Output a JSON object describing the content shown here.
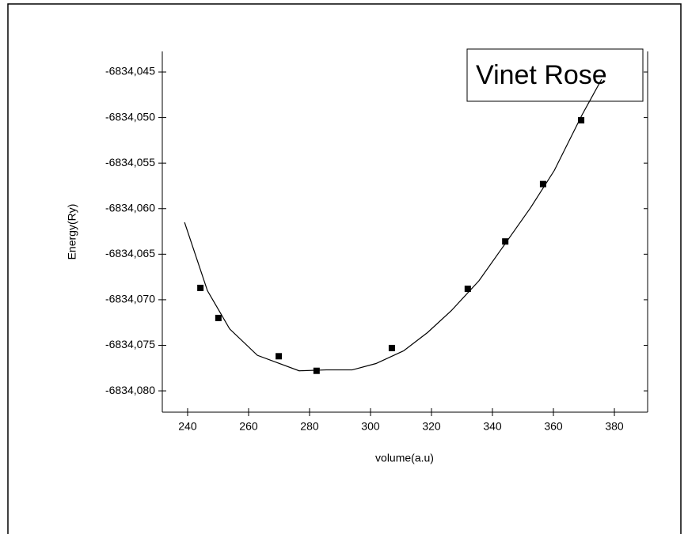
{
  "chart_data": {
    "type": "scatter",
    "xlabel": "volume(a.u)",
    "ylabel": "Energy(Ry)",
    "annotation": "Vinet Rose",
    "color": "#000000",
    "xlim": [
      231.7,
      390.9
    ],
    "ylim": [
      -6834.08234,
      -6834.04274
    ],
    "xticks": [
      240,
      260,
      280,
      300,
      320,
      340,
      360,
      380
    ],
    "yticks": [
      {
        "value": -6834.045,
        "label": "-6834,045"
      },
      {
        "value": -6834.05,
        "label": "-6834,050"
      },
      {
        "value": -6834.055,
        "label": "-6834,055"
      },
      {
        "value": -6834.06,
        "label": "-6834,060"
      },
      {
        "value": -6834.065,
        "label": "-6834,065"
      },
      {
        "value": -6834.07,
        "label": "-6834,070"
      },
      {
        "value": -6834.075,
        "label": "-6834,075"
      },
      {
        "value": -6834.08,
        "label": "-6834,080"
      }
    ],
    "points": {
      "x": [
        244.2,
        250.1,
        269.9,
        282.3,
        307,
        331.9,
        344.2,
        356.6,
        369.1
      ],
      "y": [
        -6834.0687,
        -6834.072,
        -6834.0762,
        -6834.0778,
        -6834.0753,
        -6834.0688,
        -6834.0636,
        -6834.0573,
        -6834.0503
      ]
    },
    "fit": {
      "x": [
        239,
        246.5,
        253.8,
        262.9,
        276.6,
        285.5,
        294,
        301.8,
        310.9,
        318.7,
        326.5,
        335.6,
        344.7,
        352.5,
        360.3,
        369.4,
        375.8
      ],
      "y": [
        -6834.0615,
        -6834.069,
        -6834.0732,
        -6834.0761,
        -6834.0778,
        -6834.0777,
        -6834.0777,
        -6834.077,
        -6834.0756,
        -6834.0736,
        -6834.0712,
        -6834.0679,
        -6834.0636,
        -6834.0599,
        -6834.0558,
        -6834.0497,
        -6834.0458
      ]
    }
  }
}
